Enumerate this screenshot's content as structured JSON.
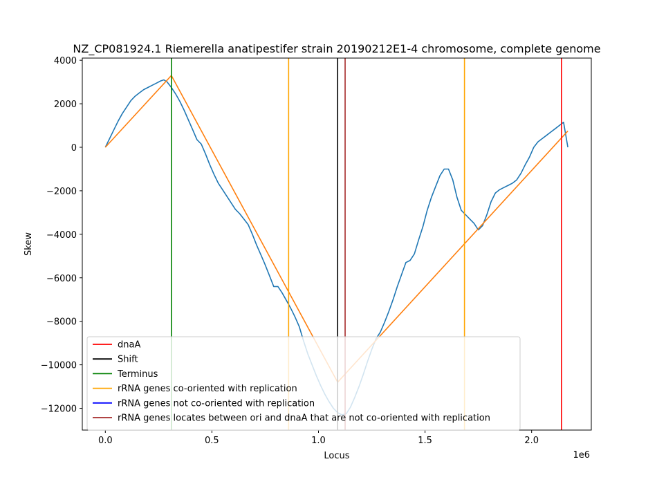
{
  "chart_data": {
    "type": "line",
    "title": "NZ_CP081924.1 Riemerella anatipestifer strain 20190212E1-4 chromosome, complete genome",
    "xlabel": "Locus",
    "ylabel": "Skew",
    "x_offset_text": "1e6",
    "xlim": [
      -0.108,
      2.28
    ],
    "ylim": [
      -13000,
      4100
    ],
    "xticks": [
      0,
      0.5,
      1.0,
      1.5,
      2.0
    ],
    "xtick_labels": [
      "0.0",
      "0.5",
      "1.0",
      "1.5",
      "2.0"
    ],
    "yticks": [
      4000,
      2000,
      0,
      -2000,
      -4000,
      -6000,
      -8000,
      -10000,
      -12000
    ],
    "ytick_labels": [
      "4000",
      "2000",
      "0",
      "−2000",
      "−4000",
      "−6000",
      "−8000",
      "−10000",
      "−12000"
    ],
    "grid": false,
    "legend_position": "lower-left",
    "series": [
      {
        "color": "#1f77b4",
        "x": [
          0,
          0.02,
          0.04,
          0.06,
          0.08,
          0.1,
          0.12,
          0.14,
          0.16,
          0.18,
          0.2,
          0.22,
          0.24,
          0.26,
          0.275,
          0.29,
          0.31,
          0.33,
          0.35,
          0.37,
          0.39,
          0.41,
          0.43,
          0.45,
          0.47,
          0.49,
          0.51,
          0.53,
          0.55,
          0.57,
          0.59,
          0.61,
          0.63,
          0.65,
          0.67,
          0.69,
          0.71,
          0.73,
          0.75,
          0.77,
          0.79,
          0.81,
          0.83,
          0.85,
          0.87,
          0.89,
          0.91,
          0.93,
          0.95,
          0.97,
          0.99,
          1.01,
          1.03,
          1.05,
          1.07,
          1.09,
          1.11,
          1.13,
          1.15,
          1.17,
          1.19,
          1.21,
          1.23,
          1.25,
          1.27,
          1.29,
          1.31,
          1.33,
          1.35,
          1.37,
          1.39,
          1.41,
          1.43,
          1.45,
          1.47,
          1.49,
          1.51,
          1.53,
          1.55,
          1.57,
          1.59,
          1.61,
          1.63,
          1.65,
          1.67,
          1.69,
          1.71,
          1.73,
          1.75,
          1.77,
          1.79,
          1.81,
          1.83,
          1.85,
          1.87,
          1.89,
          1.91,
          1.93,
          1.95,
          1.97,
          1.99,
          2.01,
          2.03,
          2.05,
          2.07,
          2.09,
          2.11,
          2.13,
          2.15,
          2.17
        ],
        "values": [
          0,
          400,
          800,
          1200,
          1550,
          1850,
          2150,
          2350,
          2500,
          2650,
          2750,
          2850,
          2950,
          3050,
          3100,
          3000,
          2750,
          2450,
          2100,
          1700,
          1250,
          800,
          350,
          150,
          -300,
          -800,
          -1250,
          -1650,
          -1950,
          -2250,
          -2550,
          -2850,
          -3050,
          -3300,
          -3550,
          -4000,
          -4500,
          -4950,
          -5400,
          -5900,
          -6400,
          -6400,
          -6700,
          -7050,
          -7400,
          -7800,
          -8250,
          -8900,
          -9500,
          -10000,
          -10500,
          -10950,
          -11350,
          -11700,
          -12000,
          -12200,
          -12300,
          -12250,
          -11950,
          -11500,
          -11000,
          -10450,
          -9850,
          -9300,
          -8800,
          -8500,
          -8050,
          -7550,
          -7000,
          -6400,
          -5850,
          -5300,
          -5200,
          -4900,
          -4250,
          -3650,
          -2900,
          -2300,
          -1800,
          -1300,
          -1000,
          -1000,
          -1500,
          -2300,
          -2900,
          -3100,
          -3300,
          -3500,
          -3800,
          -3600,
          -3100,
          -2500,
          -2100,
          -1950,
          -1850,
          -1750,
          -1650,
          -1500,
          -1200,
          -800,
          -450,
          0,
          250,
          400,
          550,
          700,
          850,
          1000,
          1150,
          0
        ]
      },
      {
        "color": "#ff7f0e",
        "x": [
          0,
          0.31,
          1.09,
          2.17
        ],
        "values": [
          0,
          3300,
          -10800,
          750
        ]
      }
    ],
    "vertical_lines": [
      {
        "x": 0.31,
        "color": "#008000"
      },
      {
        "x": 0.86,
        "color": "#ffa500"
      },
      {
        "x": 1.09,
        "color": "#000000"
      },
      {
        "x": 1.125,
        "color": "#a52a2a"
      },
      {
        "x": 1.685,
        "color": "#ffa500"
      },
      {
        "x": 2.14,
        "color": "#ff0000"
      }
    ],
    "legend": [
      {
        "label": "dnaA",
        "color": "#ff0000"
      },
      {
        "label": "Shift",
        "color": "#000000"
      },
      {
        "label": "Terminus",
        "color": "#008000"
      },
      {
        "label": "rRNA genes co-oriented with replication",
        "color": "#ffa500"
      },
      {
        "label": "rRNA genes not co-oriented with replication",
        "color": "#0000ff"
      },
      {
        "label": "rRNA genes locates between ori and dnaA that are not co-oriented with replication",
        "color": "#a52a2a"
      }
    ]
  }
}
